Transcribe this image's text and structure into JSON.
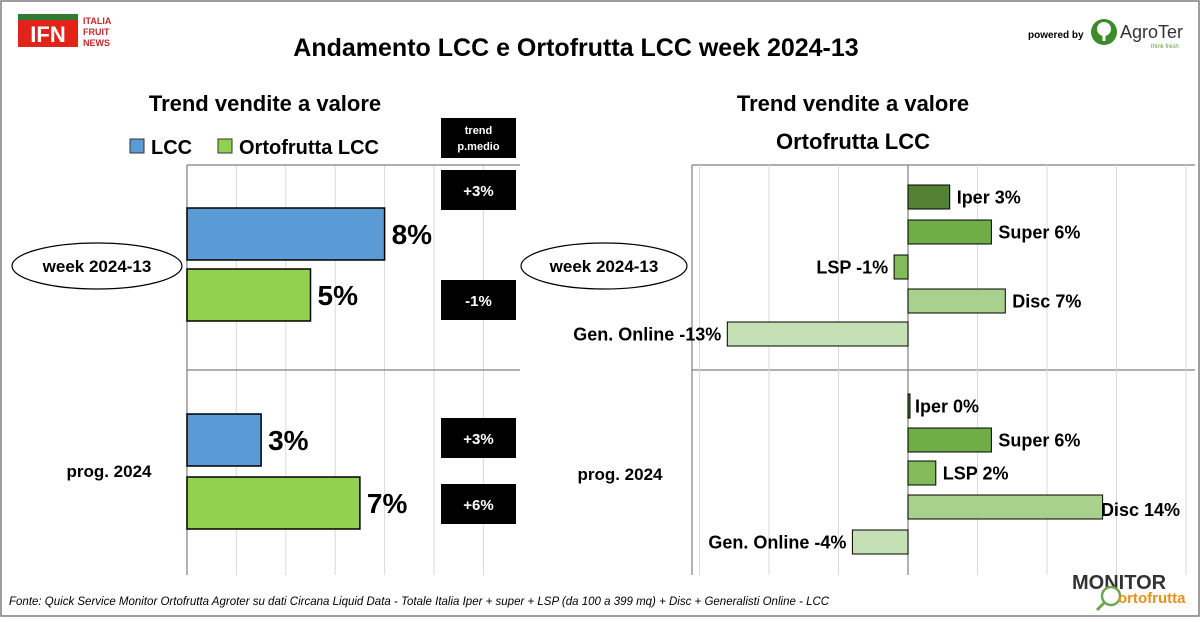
{
  "brand": {
    "ifn_mark": "IFN",
    "ifn_lines": [
      "ITALIA",
      "FRUIT",
      "NEWS"
    ],
    "powered_by": "powered by",
    "agroter": "AgroTer",
    "agroter_tagline": "think fresh",
    "monitor_line1": "MONITOR",
    "monitor_line2": "ortofrutta"
  },
  "title": "Andamento LCC e Ortofrutta LCC week 2024-13",
  "footer": "Fonte: Quick Service Monitor Ortofrutta Agroter su dati Circana Liquid Data - Totale Italia Iper + super + LSP (da 100 a 399 mq) + Disc + Generalisti Online - LCC",
  "colors": {
    "lcc": "#5b9bd5",
    "ortofrutta": "#92d050",
    "iper": "#548235",
    "super": "#70ad47",
    "lsp": "#84bb5a",
    "disc": "#a9d18e",
    "online": "#c5e0b4"
  },
  "chart_data": [
    {
      "type": "bar",
      "orientation": "horizontal",
      "title": "Trend vendite a valore",
      "groups": [
        "week 2024-13",
        "prog. 2024"
      ],
      "series": [
        {
          "name": "LCC",
          "values": [
            8,
            3
          ],
          "labels": [
            "8%",
            "3%"
          ]
        },
        {
          "name": "Ortofrutta LCC",
          "values": [
            5,
            7
          ],
          "labels": [
            "5%",
            "7%"
          ]
        }
      ],
      "unit": "%",
      "xlim": [
        0,
        14
      ],
      "grid": true,
      "legend": "top",
      "trend_header": [
        "trend",
        "p.medio"
      ],
      "trend_pmedio": [
        {
          "group": "week 2024-13",
          "series": "LCC",
          "value": "+3%"
        },
        {
          "group": "week 2024-13",
          "series": "Ortofrutta LCC",
          "value": "-1%"
        },
        {
          "group": "prog. 2024",
          "series": "LCC",
          "value": "+3%"
        },
        {
          "group": "prog. 2024",
          "series": "Ortofrutta LCC",
          "value": "+6%"
        }
      ]
    },
    {
      "type": "bar",
      "orientation": "horizontal",
      "title": [
        "Trend vendite a valore",
        "Ortofrutta LCC"
      ],
      "groups": [
        "week 2024-13",
        "prog. 2024"
      ],
      "categories": [
        "Iper",
        "Super",
        "LSP",
        "Disc",
        "Gen. Online"
      ],
      "series": [
        {
          "group": "week 2024-13",
          "values": [
            3,
            6,
            -1,
            7,
            -13
          ],
          "labels": [
            "Iper 3%",
            "Super 6%",
            "LSP -1%",
            "Disc 7%",
            "Gen. Online -13%"
          ]
        },
        {
          "group": "prog. 2024",
          "values": [
            0,
            6,
            2,
            14,
            -4
          ],
          "labels": [
            "Iper 0%",
            "Super 6%",
            "LSP 2%",
            "Disc 14%",
            "Gen. Online -4%"
          ]
        }
      ],
      "unit": "%",
      "xlim": [
        -15,
        20
      ],
      "grid": true
    }
  ]
}
